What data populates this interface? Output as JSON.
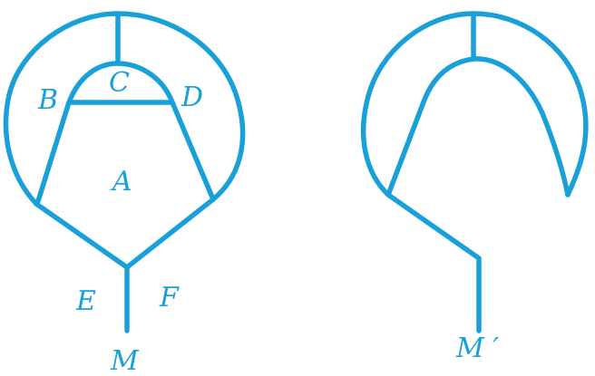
{
  "colors": {
    "stroke": "#1aa0d8",
    "label": "#1aa0d8",
    "background": "#ffffff"
  },
  "figure_left": {
    "labels": {
      "A": "A",
      "B": "B",
      "C": "C",
      "D": "D",
      "E": "E",
      "F": "F",
      "M": "M"
    }
  },
  "figure_right": {
    "labels": {
      "M_prime": "M ′"
    }
  }
}
